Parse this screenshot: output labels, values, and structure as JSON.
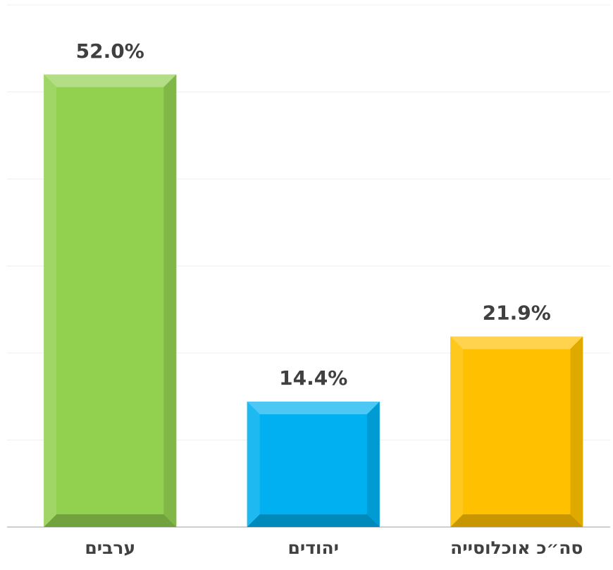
{
  "chart_data": {
    "type": "bar",
    "categories": [
      "ערבים",
      "יהודים",
      "סה״כ אוכלוסייה"
    ],
    "values": [
      52.0,
      14.4,
      21.9
    ],
    "value_labels": [
      "52.0%",
      "14.4%",
      "21.9%"
    ],
    "colors": [
      "#92d050",
      "#00b0f0",
      "#ffc000"
    ],
    "ylim": [
      0,
      60
    ],
    "yticks": [
      0,
      10,
      20,
      30,
      40,
      50,
      60
    ],
    "grid": true
  }
}
